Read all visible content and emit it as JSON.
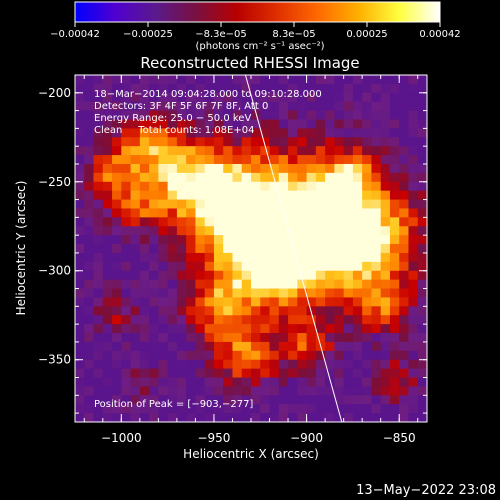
{
  "chart_data": {
    "type": "heatmap",
    "title": "Reconstructed RHESSI Image",
    "xlabel": "Heliocentric X (arcsec)",
    "ylabel": "Heliocentric Y (arcsec)",
    "xlim": [
      -1025,
      -835
    ],
    "ylim": [
      -385,
      -190
    ],
    "x_ticks": [
      -1000,
      -950,
      -900,
      -850
    ],
    "x_tick_labels": [
      "−1000",
      "−950",
      "−900",
      "−850"
    ],
    "y_ticks": [
      -200,
      -250,
      -300,
      -350
    ],
    "y_tick_labels": [
      "−200",
      "−250",
      "−300",
      "−350"
    ],
    "colorbar": {
      "range": [
        -0.00042,
        0.00042
      ],
      "tick_labels": [
        "−0.00042",
        "−0.00025",
        "−8.3e−05",
        "8.3e−05",
        "0.00025",
        "0.00042"
      ],
      "units_label": "(photons cm⁻² s⁻¹ asec⁻²)",
      "stops": [
        "#0000ff",
        "#5000d0",
        "#5a1a8a",
        "#7a1040",
        "#b80000",
        "#e03000",
        "#ff6a00",
        "#ffb000",
        "#ffff40",
        "#ffffff"
      ]
    },
    "info_lines": [
      "18−Mar−2014 09:04:28.000 to 09:10:28.000",
      "Detectors: 3F 4F 5F 6F 7F 8F, Att 0",
      "Energy Range: 25.0 − 50.0 keV",
      "Clean     Total counts: 1.08E+04"
    ],
    "peak_label": "Position of Peak = [−903,−277]",
    "peak": [
      -903,
      -277
    ],
    "limb_line": [
      [
        -933,
        -190
      ],
      [
        -881,
        -385
      ]
    ],
    "blobs": [
      [
        -940,
        -265,
        22,
        1.0
      ],
      [
        -905,
        -272,
        28,
        1.1
      ],
      [
        -870,
        -280,
        22,
        0.9
      ],
      [
        -965,
        -245,
        15,
        0.8
      ],
      [
        -990,
        -228,
        13,
        0.75
      ],
      [
        -1010,
        -242,
        9,
        0.55
      ],
      [
        -995,
        -260,
        11,
        0.6
      ],
      [
        -920,
        -295,
        16,
        0.7
      ],
      [
        -950,
        -318,
        13,
        0.7
      ],
      [
        -935,
        -345,
        12,
        0.75
      ],
      [
        -902,
        -340,
        10,
        0.6
      ],
      [
        -860,
        -318,
        10,
        0.55
      ],
      [
        -855,
        -358,
        9,
        0.45
      ],
      [
        -1005,
        -322,
        9,
        0.35
      ],
      [
        -990,
        -360,
        7,
        0.3
      ],
      [
        -880,
        -245,
        10,
        0.6
      ]
    ]
  },
  "timestamp": "13−May−2022 23:08"
}
